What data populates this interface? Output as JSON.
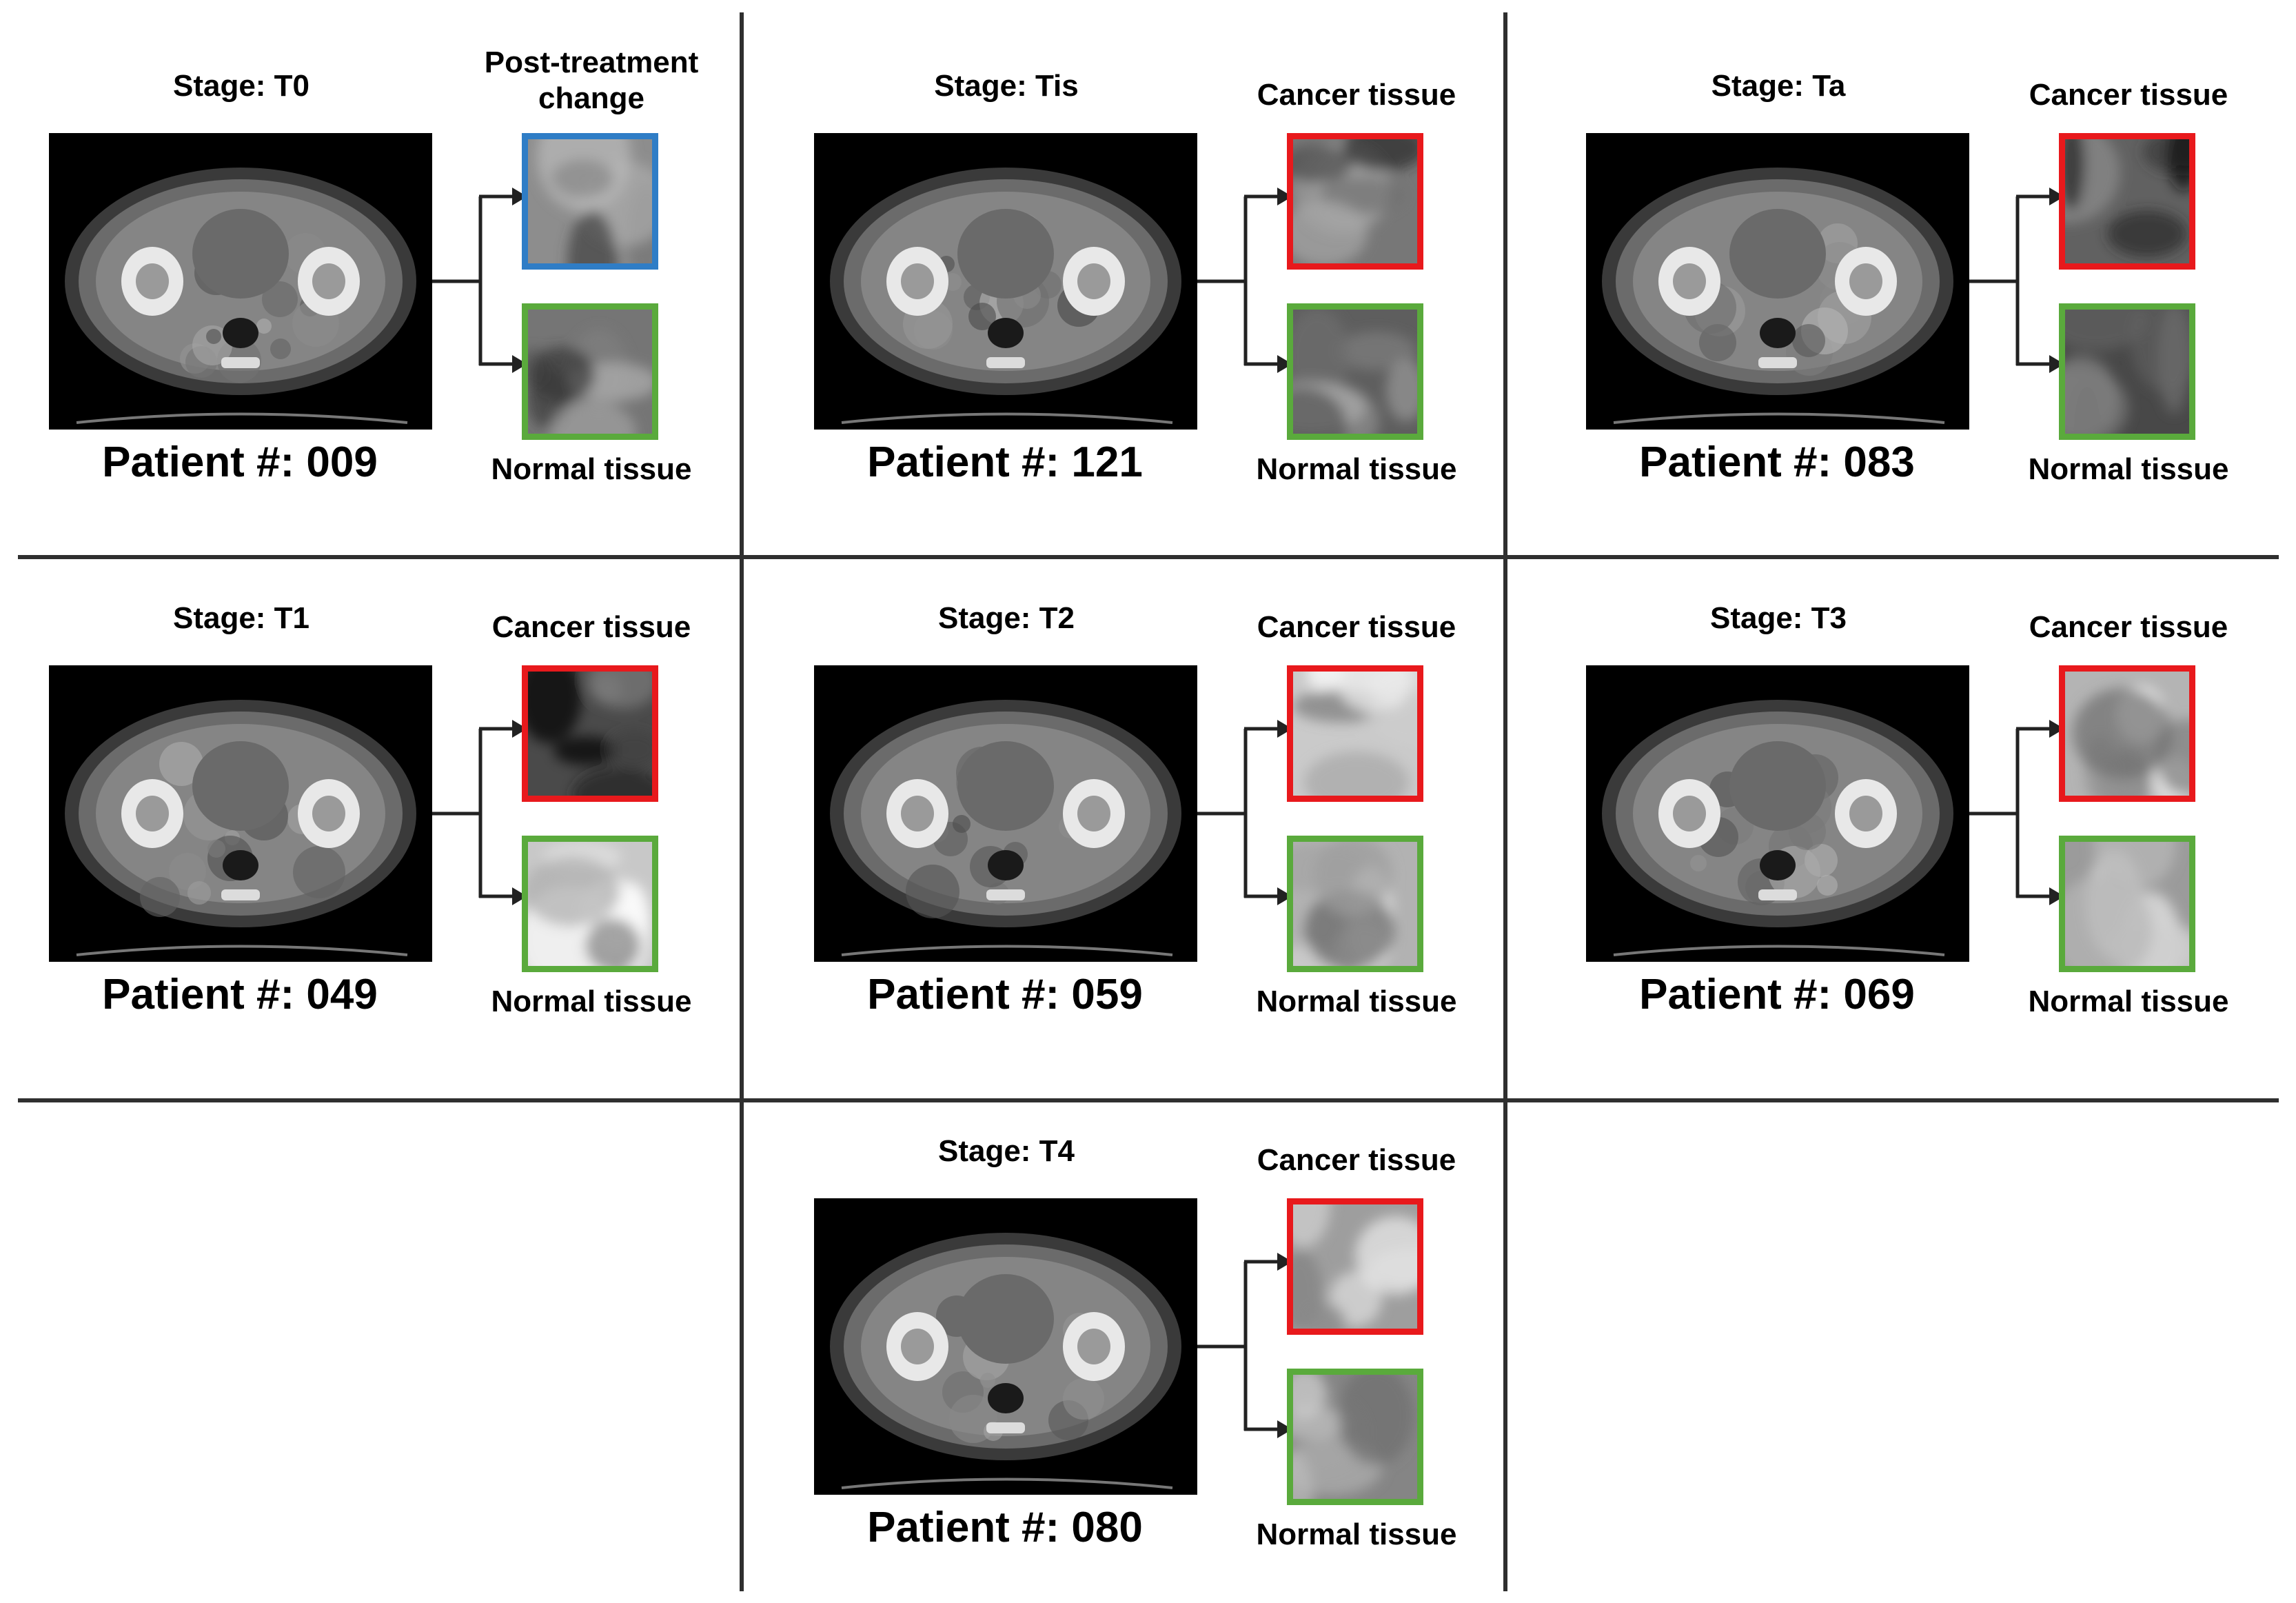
{
  "colors": {
    "cancer_border": "#e8191c",
    "normal_border": "#5aaa3c",
    "post_treatment_border": "#2f7dc6",
    "grid_line": "#2f2f2f"
  },
  "panels": [
    {
      "stage": "Stage: T0",
      "patient": "Patient #: 009",
      "top_label": "Post-treatment\nchange",
      "top_type": "post_treatment",
      "bottom_label": "Normal tissue"
    },
    {
      "stage": "Stage: Tis",
      "patient": "Patient #: 121",
      "top_label": "Cancer tissue",
      "top_type": "cancer",
      "bottom_label": "Normal tissue"
    },
    {
      "stage": "Stage: Ta",
      "patient": "Patient #: 083",
      "top_label": "Cancer tissue",
      "top_type": "cancer",
      "bottom_label": "Normal tissue"
    },
    {
      "stage": "Stage: T1",
      "patient": "Patient #: 049",
      "top_label": "Cancer tissue",
      "top_type": "cancer",
      "bottom_label": "Normal tissue"
    },
    {
      "stage": "Stage: T2",
      "patient": "Patient #: 059",
      "top_label": "Cancer tissue",
      "top_type": "cancer",
      "bottom_label": "Normal tissue"
    },
    {
      "stage": "Stage: T3",
      "patient": "Patient #: 069",
      "top_label": "Cancer tissue",
      "top_type": "cancer",
      "bottom_label": "Normal tissue"
    },
    {
      "stage": "Stage: T4",
      "patient": "Patient #: 080",
      "top_label": "Cancer tissue",
      "top_type": "cancer",
      "bottom_label": "Normal tissue"
    }
  ]
}
